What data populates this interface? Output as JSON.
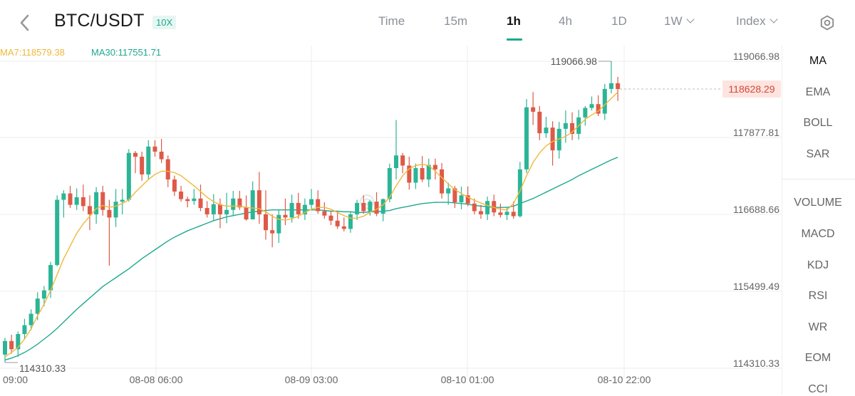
{
  "header": {
    "pair": "BTC/USDT",
    "leverage": "10X",
    "timeframes": [
      {
        "label": "Time",
        "active": false
      },
      {
        "label": "15m",
        "active": false
      },
      {
        "label": "1h",
        "active": true
      },
      {
        "label": "4h",
        "active": false
      },
      {
        "label": "1D",
        "active": false
      },
      {
        "label": "1W",
        "active": false,
        "dropdown": true
      },
      {
        "label": "Index",
        "active": false,
        "dropdown": true
      }
    ],
    "icons": [
      "chevron-left-icon",
      "settings-gear-icon"
    ]
  },
  "ma_legend": {
    "ma7": "MA7:118579.38",
    "ma30": "MA30:117551.71",
    "ma7_color": "#f0b83a",
    "ma30_color": "#1fa88f"
  },
  "indicators": {
    "main": [
      "MA",
      "EMA",
      "BOLL",
      "SAR"
    ],
    "sub": [
      "VOLUME",
      "MACD",
      "KDJ",
      "RSI",
      "WR",
      "EOM",
      "CCI"
    ],
    "active": "MA"
  },
  "chart_data": {
    "type": "candlestick",
    "interval": "1h",
    "y_axis": {
      "labels": [
        "119066.98",
        "117877.81",
        "116688.66",
        "115499.49",
        "114310.33"
      ],
      "ylim": [
        114310.33,
        119066.98
      ]
    },
    "x_axis": {
      "labels": [
        "09:00",
        "08-08 06:00",
        "08-09 03:00",
        "08-10 01:00",
        "08-10 22:00"
      ]
    },
    "annotations": {
      "high": "119066.98",
      "low": "114310.33",
      "last_price": "118628.29"
    },
    "colors": {
      "up": "#2bb596",
      "down": "#de5a48",
      "ma7": "#f0b83a",
      "ma30": "#1fa88f",
      "last_price_bg": "#fde4df",
      "last_price_text": "#d2483a"
    },
    "candles_ohlc": [
      [
        114435,
        114700,
        114310,
        114650
      ],
      [
        114650,
        114750,
        114450,
        114520
      ],
      [
        114520,
        114800,
        114400,
        114760
      ],
      [
        114760,
        115000,
        114680,
        114900
      ],
      [
        114900,
        115150,
        114820,
        115080
      ],
      [
        115080,
        115420,
        114980,
        115320
      ],
      [
        115320,
        115520,
        115200,
        115450
      ],
      [
        115450,
        115900,
        115330,
        115850
      ],
      [
        115850,
        116950,
        115830,
        116880
      ],
      [
        116880,
        117030,
        116600,
        116980
      ],
      [
        116980,
        117100,
        116750,
        116800
      ],
      [
        116800,
        117060,
        116720,
        116920
      ],
      [
        116920,
        117120,
        116700,
        116780
      ],
      [
        116780,
        116950,
        116400,
        116650
      ],
      [
        116650,
        117080,
        116500,
        117000
      ],
      [
        117000,
        117100,
        116630,
        116720
      ],
      [
        116720,
        116880,
        115840,
        116600
      ],
      [
        116600,
        117050,
        116450,
        116850
      ],
      [
        116850,
        117050,
        116650,
        116880
      ],
      [
        116880,
        117680,
        116850,
        117620
      ],
      [
        117620,
        117650,
        117300,
        117560
      ],
      [
        117560,
        117640,
        117180,
        117280
      ],
      [
        117280,
        117820,
        117200,
        117720
      ],
      [
        117720,
        117820,
        117560,
        117640
      ],
      [
        117640,
        117840,
        117460,
        117520
      ],
      [
        117520,
        117580,
        117080,
        117200
      ],
      [
        117200,
        117260,
        116940,
        117010
      ],
      [
        117010,
        117100,
        116850,
        116890
      ],
      [
        116890,
        116930,
        116760,
        116860
      ],
      [
        116860,
        117050,
        116800,
        116900
      ],
      [
        116900,
        117120,
        116700,
        116750
      ],
      [
        116750,
        116860,
        116600,
        116650
      ],
      [
        116650,
        116970,
        116550,
        116810
      ],
      [
        116810,
        116900,
        116430,
        116650
      ],
      [
        116650,
        116990,
        116510,
        116720
      ],
      [
        116720,
        117020,
        116620,
        116900
      ],
      [
        116900,
        117020,
        116720,
        116760
      ],
      [
        116760,
        116950,
        116550,
        116570
      ],
      [
        116570,
        117170,
        116600,
        117030
      ],
      [
        117030,
        117320,
        116500,
        116650
      ],
      [
        116650,
        117030,
        116250,
        116400
      ],
      [
        116400,
        116650,
        116130,
        116350
      ],
      [
        116350,
        116720,
        116200,
        116640
      ],
      [
        116640,
        116900,
        116480,
        116600
      ],
      [
        116600,
        116960,
        116520,
        116830
      ],
      [
        116830,
        116990,
        116580,
        116650
      ],
      [
        116650,
        116900,
        116560,
        116800
      ],
      [
        116800,
        117050,
        116740,
        116890
      ],
      [
        116890,
        117030,
        116660,
        116700
      ],
      [
        116700,
        116840,
        116580,
        116630
      ],
      [
        116630,
        116700,
        116480,
        116550
      ],
      [
        116550,
        116700,
        116420,
        116460
      ],
      [
        116460,
        116600,
        116380,
        116420
      ],
      [
        116420,
        116680,
        116360,
        116650
      ],
      [
        116650,
        116880,
        116560,
        116830
      ],
      [
        116830,
        116950,
        116660,
        116700
      ],
      [
        116700,
        116880,
        116630,
        116850
      ],
      [
        116850,
        117000,
        116620,
        116660
      ],
      [
        116660,
        116900,
        116540,
        116890
      ],
      [
        116890,
        117450,
        116840,
        117380
      ],
      [
        117380,
        118140,
        117200,
        117580
      ],
      [
        117580,
        117620,
        117300,
        117420
      ],
      [
        117420,
        117560,
        117040,
        117150
      ],
      [
        117150,
        117450,
        117050,
        117380
      ],
      [
        117380,
        117570,
        117160,
        117200
      ],
      [
        117200,
        117530,
        117080,
        117430
      ],
      [
        117430,
        117530,
        117200,
        117360
      ],
      [
        117360,
        117460,
        116900,
        116980
      ],
      [
        116980,
        117150,
        116800,
        117060
      ],
      [
        117060,
        117100,
        116750,
        116840
      ],
      [
        116840,
        117090,
        116730,
        116950
      ],
      [
        116950,
        117090,
        116780,
        116820
      ],
      [
        116820,
        116900,
        116650,
        116700
      ],
      [
        116700,
        116800,
        116580,
        116650
      ],
      [
        116650,
        116930,
        116560,
        116860
      ],
      [
        116860,
        116960,
        116620,
        116680
      ],
      [
        116680,
        116820,
        116600,
        116640
      ],
      [
        116640,
        116760,
        116560,
        116690
      ],
      [
        116690,
        116850,
        116580,
        116620
      ],
      [
        116620,
        117480,
        116600,
        117360
      ],
      [
        117360,
        118470,
        117300,
        118340
      ],
      [
        118340,
        118580,
        118060,
        118270
      ],
      [
        118270,
        118360,
        117820,
        117930
      ],
      [
        117930,
        118190,
        117860,
        118020
      ],
      [
        118020,
        118120,
        117420,
        117660
      ],
      [
        117660,
        118110,
        117530,
        118000
      ],
      [
        118000,
        118290,
        117780,
        118090
      ],
      [
        118090,
        118260,
        117820,
        117920
      ],
      [
        117920,
        118300,
        117830,
        118180
      ],
      [
        118180,
        118360,
        118050,
        118330
      ],
      [
        118330,
        118510,
        118290,
        118390
      ],
      [
        118390,
        118530,
        118200,
        118240
      ],
      [
        118240,
        118710,
        118140,
        118630
      ],
      [
        118630,
        119067,
        118560,
        118720
      ],
      [
        118720,
        118820,
        118440,
        118628
      ]
    ],
    "ma7": [
      114400,
      114470,
      114550,
      114680,
      114840,
      115050,
      115230,
      115450,
      115700,
      115950,
      116150,
      116350,
      116500,
      116620,
      116740,
      116790,
      116760,
      116780,
      116820,
      116880,
      117000,
      117100,
      117200,
      117280,
      117330,
      117330,
      117310,
      117260,
      117180,
      117100,
      117010,
      116920,
      116850,
      116800,
      116780,
      116780,
      116780,
      116760,
      116750,
      116740,
      116690,
      116620,
      116570,
      116560,
      116580,
      116620,
      116680,
      116730,
      116760,
      116760,
      116730,
      116680,
      116630,
      116590,
      116590,
      116620,
      116680,
      116730,
      116800,
      116920,
      117100,
      117260,
      117370,
      117420,
      117440,
      117420,
      117330,
      117230,
      117130,
      117040,
      116980,
      116920,
      116870,
      116830,
      116790,
      116760,
      116730,
      116720,
      116820,
      117020,
      117260,
      117470,
      117620,
      117730,
      117800,
      117840,
      117880,
      117950,
      118050,
      118150,
      118220,
      118280,
      118380,
      118480,
      118580
    ],
    "ma30": [
      114350,
      114380,
      114420,
      114470,
      114530,
      114600,
      114680,
      114760,
      114850,
      114950,
      115050,
      115150,
      115240,
      115330,
      115420,
      115510,
      115580,
      115650,
      115720,
      115790,
      115870,
      115950,
      116020,
      116090,
      116160,
      116230,
      116290,
      116340,
      116390,
      116430,
      116470,
      116510,
      116550,
      116580,
      116610,
      116630,
      116650,
      116670,
      116690,
      116700,
      116710,
      116720,
      116720,
      116720,
      116720,
      116720,
      116720,
      116720,
      116720,
      116710,
      116700,
      116700,
      116690,
      116690,
      116680,
      116680,
      116690,
      116690,
      116700,
      116710,
      116740,
      116760,
      116780,
      116800,
      116820,
      116830,
      116840,
      116840,
      116840,
      116830,
      116820,
      116810,
      116790,
      116780,
      116770,
      116760,
      116760,
      116760,
      116780,
      116820,
      116860,
      116900,
      116950,
      117000,
      117050,
      117100,
      117150,
      117200,
      117260,
      117310,
      117360,
      117410,
      117460,
      117510,
      117551
    ]
  }
}
